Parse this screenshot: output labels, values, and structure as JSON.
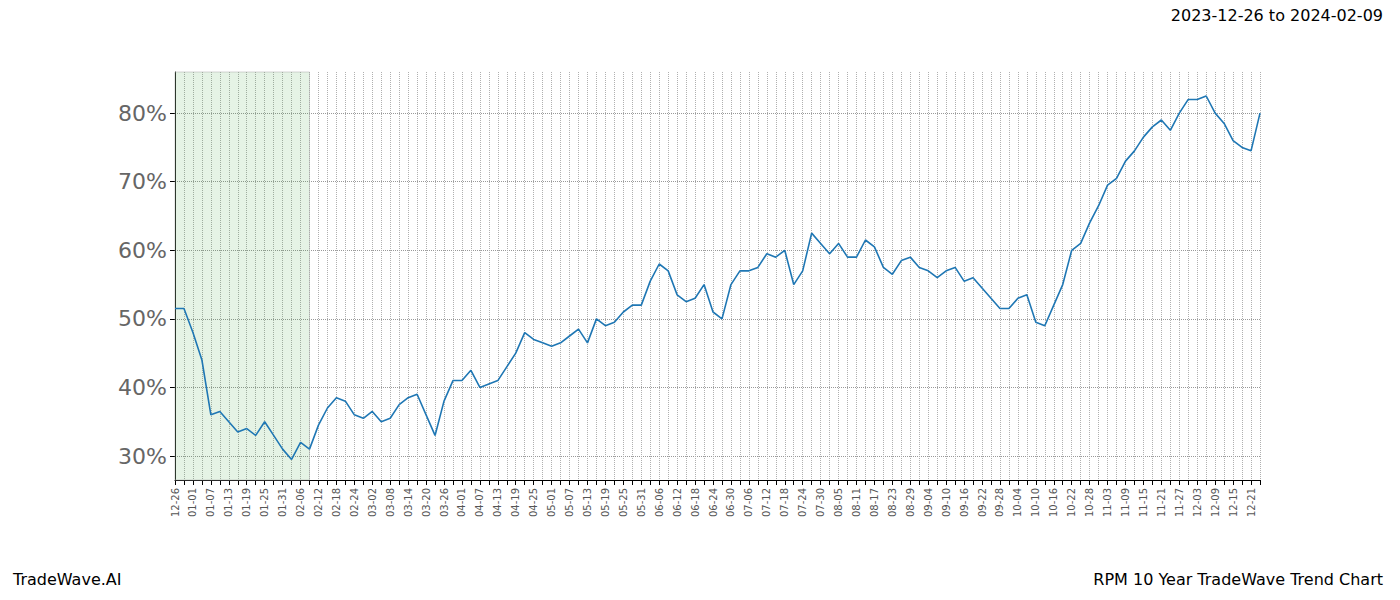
{
  "chart_data": {
    "type": "line",
    "title": "2023-12-26 to 2024-02-09",
    "footer_left": "TradeWave.AI",
    "footer_right": "RPM 10 Year TradeWave Trend Chart",
    "color": "#1f77b4",
    "grid": true,
    "highlight_x": [
      0,
      15
    ],
    "categories": [
      "12-26",
      null,
      "01-01",
      null,
      "01-07",
      null,
      "01-13",
      null,
      "01-19",
      null,
      "01-25",
      null,
      "01-31",
      null,
      "02-06",
      null,
      "02-12",
      null,
      "02-18",
      null,
      "02-24",
      null,
      "03-02",
      null,
      "03-08",
      null,
      "03-14",
      null,
      "03-20",
      null,
      "03-26",
      null,
      "04-01",
      null,
      "04-07",
      null,
      "04-13",
      null,
      "04-19",
      null,
      "04-25",
      null,
      "05-01",
      null,
      "05-07",
      null,
      "05-13",
      null,
      "05-19",
      null,
      "05-25",
      null,
      "05-31",
      null,
      "06-06",
      null,
      "06-12",
      null,
      "06-18",
      null,
      "06-24",
      null,
      "06-30",
      null,
      "07-06",
      null,
      "07-12",
      null,
      "07-18",
      null,
      "07-24",
      null,
      "07-30",
      null,
      "08-05",
      null,
      "08-11",
      null,
      "08-17",
      null,
      "08-23",
      null,
      "08-29",
      null,
      "09-04",
      null,
      "09-10",
      null,
      "09-16",
      null,
      "09-22",
      null,
      "09-28",
      null,
      "10-04",
      null,
      "10-10",
      null,
      "10-16",
      null,
      "10-22",
      null,
      "10-28",
      null,
      "11-03",
      null,
      "11-09",
      null,
      "11-15",
      null,
      "11-21",
      null,
      "11-27",
      null,
      "12-03",
      null,
      "12-09",
      null,
      "12-15",
      null,
      "12-21",
      null
    ],
    "values": [
      51.5,
      51.5,
      48,
      44,
      36,
      36.5,
      35,
      33.5,
      34,
      33,
      35,
      33,
      31,
      29.5,
      32,
      31,
      34.5,
      37,
      38.5,
      38,
      36,
      35.5,
      36.5,
      35,
      35.5,
      37.5,
      38.5,
      39,
      36,
      33,
      38,
      41,
      41,
      42.5,
      40,
      40.5,
      41,
      43,
      45,
      48,
      47,
      46.5,
      46,
      46.5,
      47.5,
      48.5,
      46.5,
      50,
      49,
      49.5,
      51,
      52,
      52,
      55.5,
      58,
      57,
      53.5,
      52.5,
      53,
      55,
      51,
      50,
      55,
      57,
      57,
      57.5,
      59.5,
      59,
      60,
      55,
      57,
      62.5,
      61,
      59.5,
      61,
      59,
      59,
      61.5,
      60.5,
      57.5,
      56.5,
      58.5,
      59,
      57.5,
      57,
      56,
      57,
      57.5,
      55.5,
      56,
      54.5,
      53,
      51.5,
      51.5,
      53,
      53.5,
      49.5,
      49,
      52,
      55,
      60,
      61,
      64,
      66.5,
      69.5,
      70.5,
      73,
      74.5,
      76.5,
      78,
      79,
      77.5,
      80,
      82,
      82,
      82.5,
      80,
      78.5,
      76,
      75,
      74.5,
      80
    ],
    "ylim": [
      26.5,
      86
    ],
    "yticks": [
      {
        "value": 30,
        "label": "30%"
      },
      {
        "value": 40,
        "label": "40%"
      },
      {
        "value": 50,
        "label": "50%"
      },
      {
        "value": 60,
        "label": "60%"
      },
      {
        "value": 70,
        "label": "70%"
      },
      {
        "value": 80,
        "label": "80%"
      }
    ]
  }
}
